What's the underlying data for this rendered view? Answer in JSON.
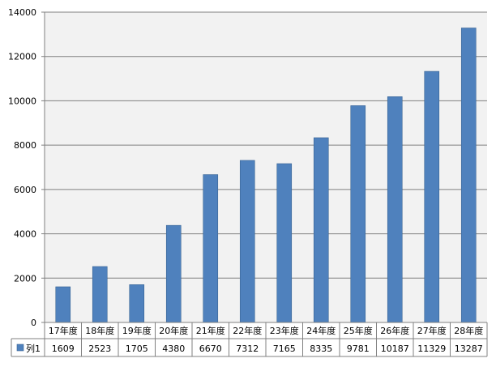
{
  "chart_data": {
    "type": "bar",
    "categories": [
      "17年度",
      "18年度",
      "19年度",
      "20年度",
      "21年度",
      "22年度",
      "23年度",
      "24年度",
      "25年度",
      "26年度",
      "27年度",
      "28年度"
    ],
    "series": [
      {
        "name": "列1",
        "values": [
          1609,
          2523,
          1705,
          4380,
          6670,
          7312,
          7165,
          8335,
          9781,
          10187,
          11329,
          13287
        ],
        "color": "#4f81bd"
      }
    ],
    "y_ticks": [
      "0",
      "2000",
      "4000",
      "6000",
      "8000",
      "10000",
      "12000",
      "14000"
    ],
    "ylim": [
      0,
      14000
    ],
    "grid": true,
    "plot_background": "#f2f2f2",
    "data_table": true
  }
}
